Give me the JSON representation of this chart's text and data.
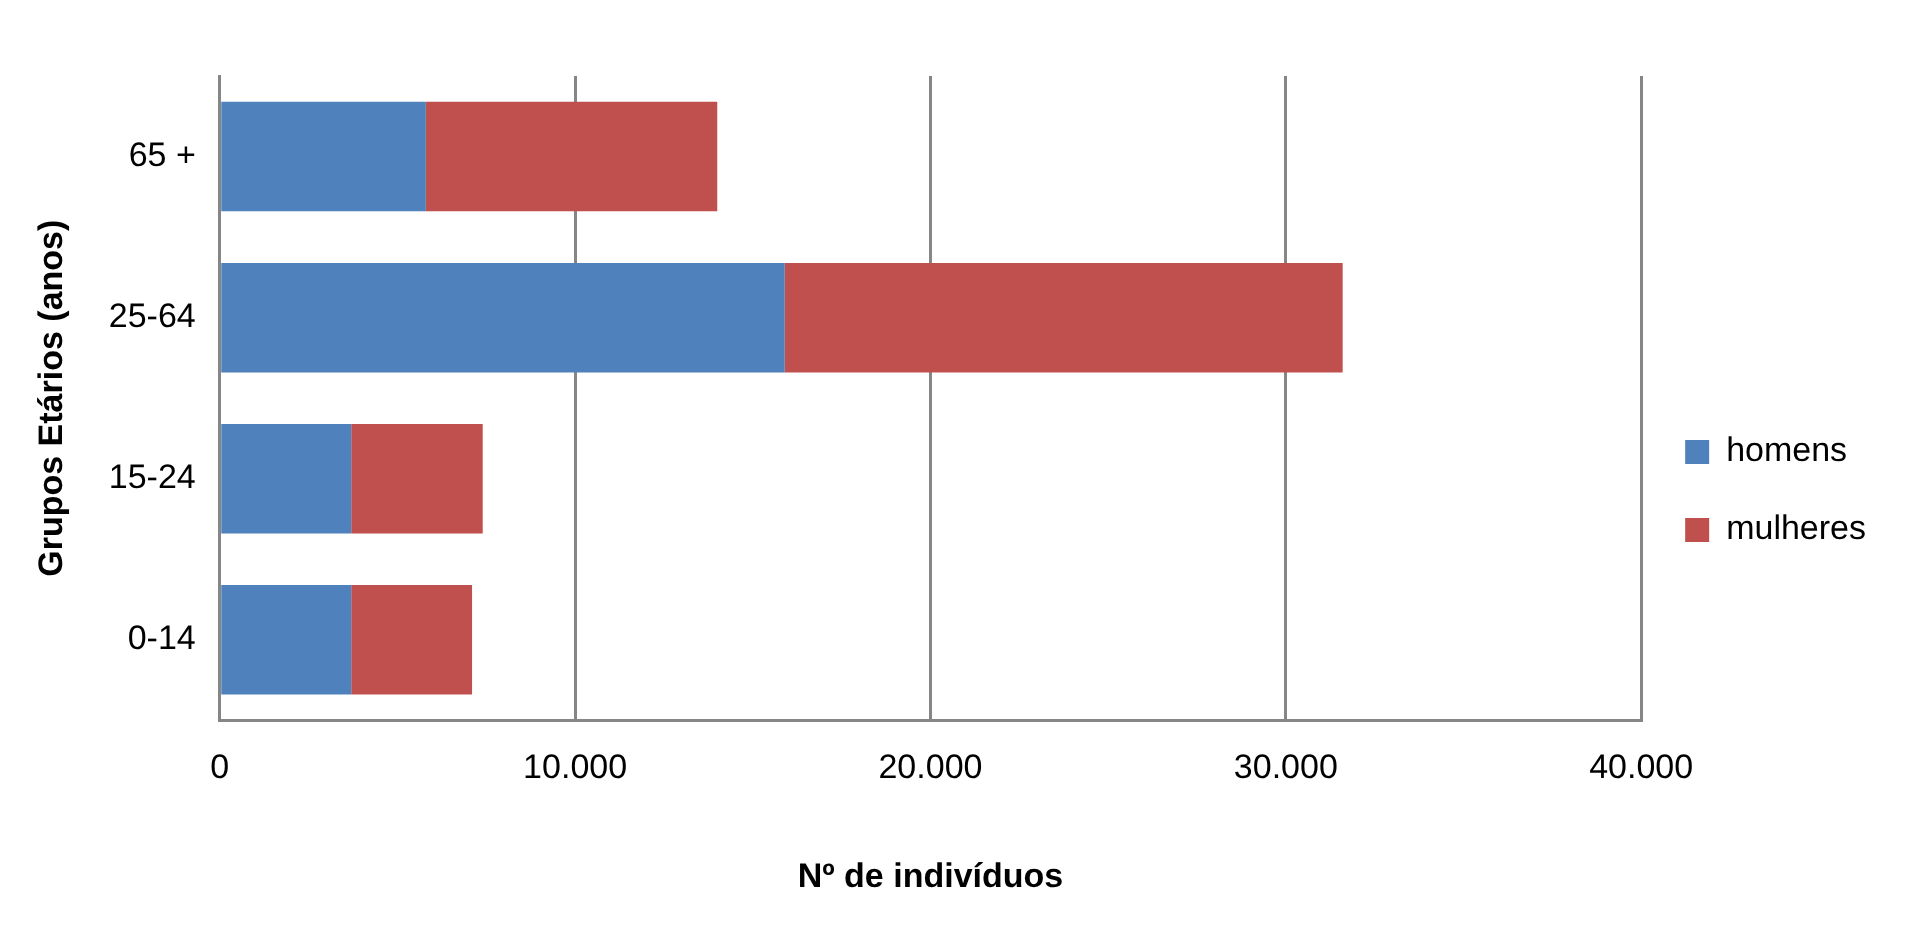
{
  "chart_data": {
    "type": "bar",
    "orientation": "horizontal",
    "stacked": true,
    "xlabel": "Nº de indivíduos",
    "ylabel": "Grupos Etários (anos)",
    "categories": [
      "65 +",
      "25-64",
      "15-24",
      "0-14"
    ],
    "series": [
      {
        "name": "homens",
        "color": "#4f81bd",
        "values": [
          5800,
          15900,
          3700,
          3700
        ]
      },
      {
        "name": "mulheres",
        "color": "#c0504d",
        "values": [
          8200,
          15700,
          3700,
          3400
        ]
      }
    ],
    "xlim": [
      0,
      40000
    ],
    "xticks": [
      0,
      {
        "value": 10000,
        "label": "10.000"
      },
      {
        "value": 20000,
        "label": "20.000"
      },
      {
        "value": 30000,
        "label": "30.000"
      },
      {
        "value": 40000,
        "label": "40.000"
      }
    ],
    "grid": "x",
    "legend": "right"
  }
}
